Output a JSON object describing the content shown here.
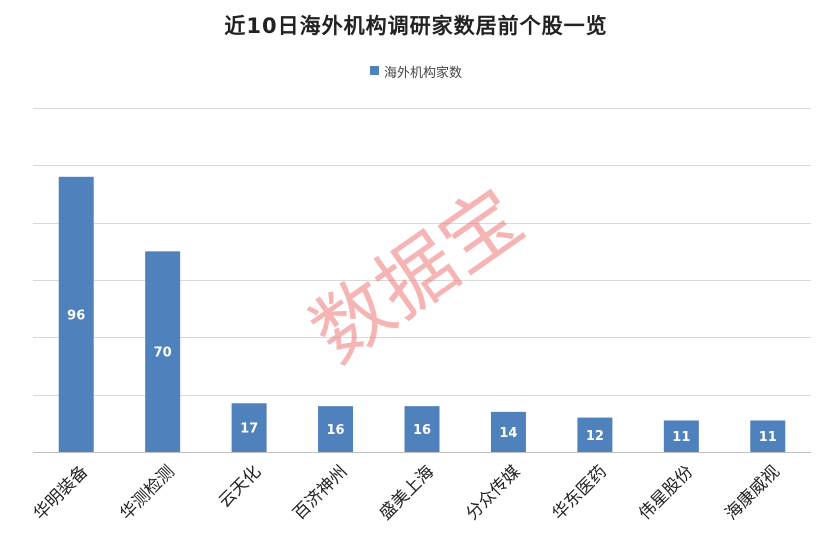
{
  "chart_data": {
    "type": "bar",
    "title": "近10日海外机构调研家数居前个股一览",
    "categories": [
      "华明装备",
      "华测检测",
      "云天化",
      "百济神州",
      "盛美上海",
      "分众传媒",
      "华东医药",
      "伟星股份",
      "海康威视"
    ],
    "series": [
      {
        "name": "海外机构家数",
        "values": [
          96,
          70,
          17,
          16,
          16,
          14,
          12,
          11,
          11
        ],
        "color": "#4f81bd"
      }
    ],
    "ylim": [
      0,
      120
    ],
    "grid": true,
    "legend": "top-center",
    "data_labels": true
  },
  "watermark": {
    "text": "数据宝"
  }
}
